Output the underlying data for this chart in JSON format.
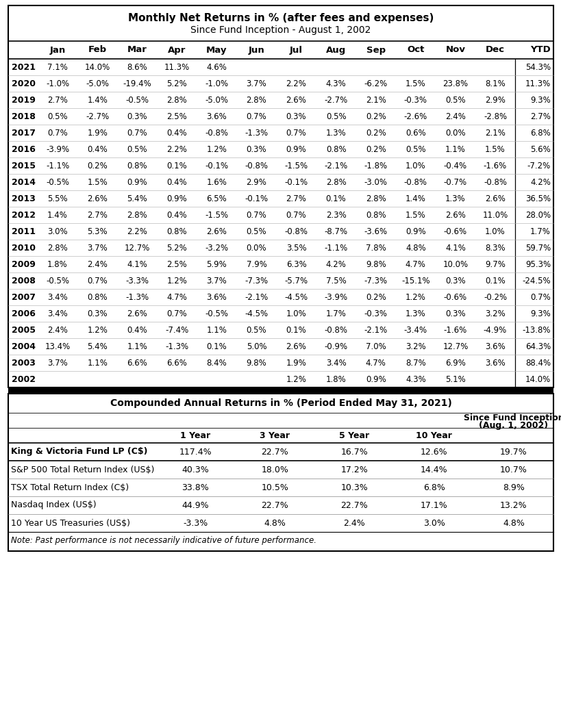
{
  "title1": "Monthly Net Returns in % (after fees and expenses)",
  "title2": "Since Fund Inception - August 1, 2002",
  "col_headers": [
    "",
    "Jan",
    "Feb",
    "Mar",
    "Apr",
    "May",
    "Jun",
    "Jul",
    "Aug",
    "Sep",
    "Oct",
    "Nov",
    "Dec",
    "YTD"
  ],
  "monthly_data": [
    [
      "2021",
      "7.1%",
      "14.0%",
      "8.6%",
      "11.3%",
      "4.6%",
      "",
      "",
      "",
      "",
      "",
      "",
      "",
      "54.3%"
    ],
    [
      "2020",
      "-1.0%",
      "-5.0%",
      "-19.4%",
      "5.2%",
      "-1.0%",
      "3.7%",
      "2.2%",
      "4.3%",
      "-6.2%",
      "1.5%",
      "23.8%",
      "8.1%",
      "11.3%"
    ],
    [
      "2019",
      "2.7%",
      "1.4%",
      "-0.5%",
      "2.8%",
      "-5.0%",
      "2.8%",
      "2.6%",
      "-2.7%",
      "2.1%",
      "-0.3%",
      "0.5%",
      "2.9%",
      "9.3%"
    ],
    [
      "2018",
      "0.5%",
      "-2.7%",
      "0.3%",
      "2.5%",
      "3.6%",
      "0.7%",
      "0.3%",
      "0.5%",
      "0.2%",
      "-2.6%",
      "2.4%",
      "-2.8%",
      "2.7%"
    ],
    [
      "2017",
      "0.7%",
      "1.9%",
      "0.7%",
      "0.4%",
      "-0.8%",
      "-1.3%",
      "0.7%",
      "1.3%",
      "0.2%",
      "0.6%",
      "0.0%",
      "2.1%",
      "6.8%"
    ],
    [
      "2016",
      "-3.9%",
      "0.4%",
      "0.5%",
      "2.2%",
      "1.2%",
      "0.3%",
      "0.9%",
      "0.8%",
      "0.2%",
      "0.5%",
      "1.1%",
      "1.5%",
      "5.6%"
    ],
    [
      "2015",
      "-1.1%",
      "0.2%",
      "0.8%",
      "0.1%",
      "-0.1%",
      "-0.8%",
      "-1.5%",
      "-2.1%",
      "-1.8%",
      "1.0%",
      "-0.4%",
      "-1.6%",
      "-7.2%"
    ],
    [
      "2014",
      "-0.5%",
      "1.5%",
      "0.9%",
      "0.4%",
      "1.6%",
      "2.9%",
      "-0.1%",
      "2.8%",
      "-3.0%",
      "-0.8%",
      "-0.7%",
      "-0.8%",
      "4.2%"
    ],
    [
      "2013",
      "5.5%",
      "2.6%",
      "5.4%",
      "0.9%",
      "6.5%",
      "-0.1%",
      "2.7%",
      "0.1%",
      "2.8%",
      "1.4%",
      "1.3%",
      "2.6%",
      "36.5%"
    ],
    [
      "2012",
      "1.4%",
      "2.7%",
      "2.8%",
      "0.4%",
      "-1.5%",
      "0.7%",
      "0.7%",
      "2.3%",
      "0.8%",
      "1.5%",
      "2.6%",
      "11.0%",
      "28.0%"
    ],
    [
      "2011",
      "3.0%",
      "5.3%",
      "2.2%",
      "0.8%",
      "2.6%",
      "0.5%",
      "-0.8%",
      "-8.7%",
      "-3.6%",
      "0.9%",
      "-0.6%",
      "1.0%",
      "1.7%"
    ],
    [
      "2010",
      "2.8%",
      "3.7%",
      "12.7%",
      "5.2%",
      "-3.2%",
      "0.0%",
      "3.5%",
      "-1.1%",
      "7.8%",
      "4.8%",
      "4.1%",
      "8.3%",
      "59.7%"
    ],
    [
      "2009",
      "1.8%",
      "2.4%",
      "4.1%",
      "2.5%",
      "5.9%",
      "7.9%",
      "6.3%",
      "4.2%",
      "9.8%",
      "4.7%",
      "10.0%",
      "9.7%",
      "95.3%"
    ],
    [
      "2008",
      "-0.5%",
      "0.7%",
      "-3.3%",
      "1.2%",
      "3.7%",
      "-7.3%",
      "-5.7%",
      "7.5%",
      "-7.3%",
      "-15.1%",
      "0.3%",
      "0.1%",
      "-24.5%"
    ],
    [
      "2007",
      "3.4%",
      "0.8%",
      "-1.3%",
      "4.7%",
      "3.6%",
      "-2.1%",
      "-4.5%",
      "-3.9%",
      "0.2%",
      "1.2%",
      "-0.6%",
      "-0.2%",
      "0.7%"
    ],
    [
      "2006",
      "3.4%",
      "0.3%",
      "2.6%",
      "0.7%",
      "-0.5%",
      "-4.5%",
      "1.0%",
      "1.7%",
      "-0.3%",
      "1.3%",
      "0.3%",
      "3.2%",
      "9.3%"
    ],
    [
      "2005",
      "2.4%",
      "1.2%",
      "0.4%",
      "-7.4%",
      "1.1%",
      "0.5%",
      "0.1%",
      "-0.8%",
      "-2.1%",
      "-3.4%",
      "-1.6%",
      "-4.9%",
      "-13.8%"
    ],
    [
      "2004",
      "13.4%",
      "5.4%",
      "1.1%",
      "-1.3%",
      "0.1%",
      "5.0%",
      "2.6%",
      "-0.9%",
      "7.0%",
      "3.2%",
      "12.7%",
      "3.6%",
      "64.3%"
    ],
    [
      "2003",
      "3.7%",
      "1.1%",
      "6.6%",
      "6.6%",
      "8.4%",
      "9.8%",
      "1.9%",
      "3.4%",
      "4.7%",
      "8.7%",
      "6.9%",
      "3.6%",
      "88.4%"
    ],
    [
      "2002",
      "",
      "",
      "",
      "",
      "",
      "",
      "1.2%",
      "1.8%",
      "0.9%",
      "4.3%",
      "5.1%",
      "",
      "14.0%"
    ]
  ],
  "title3": "Compounded Annual Returns in % (Period Ended May 31, 2021)",
  "annual_data": [
    [
      "King & Victoria Fund LP (C$)",
      "117.4%",
      "22.7%",
      "16.7%",
      "12.6%",
      "19.7%"
    ],
    [
      "S&P 500 Total Return Index (US$)",
      "40.3%",
      "18.0%",
      "17.2%",
      "14.4%",
      "10.7%"
    ],
    [
      "TSX Total Return Index (C$)",
      "33.8%",
      "10.5%",
      "10.3%",
      "6.8%",
      "8.9%"
    ],
    [
      "Nasdaq Index (US$)",
      "44.9%",
      "22.7%",
      "22.7%",
      "17.1%",
      "13.2%"
    ],
    [
      "10 Year US Treasuries (US$)",
      "-3.3%",
      "4.8%",
      "2.4%",
      "3.0%",
      "4.8%"
    ]
  ],
  "note": "Note: Past performance is not necessarily indicative of future performance.",
  "bg_color": "#ffffff"
}
